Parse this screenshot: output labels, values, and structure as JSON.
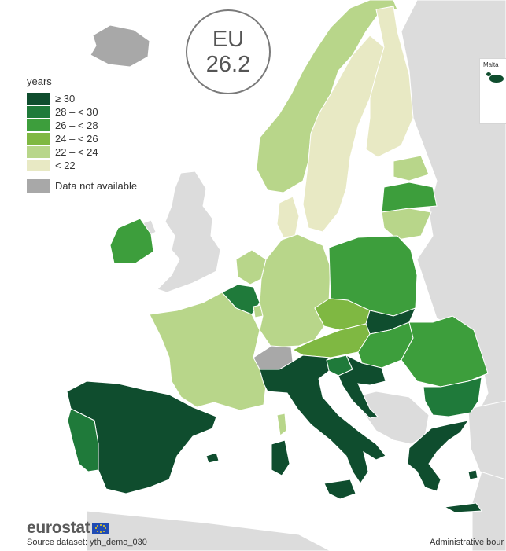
{
  "badge": {
    "line1": "EU",
    "line2": "26.2"
  },
  "legend": {
    "title": "years",
    "classes": [
      {
        "label": "≥ 30",
        "color": "#0f4d2e"
      },
      {
        "label": "28 – < 30",
        "color": "#1f7a3a"
      },
      {
        "label": "26 – < 28",
        "color": "#3d9e3c"
      },
      {
        "label": "24 – < 26",
        "color": "#7fb842"
      },
      {
        "label": "22 – < 24",
        "color": "#b8d68a"
      },
      {
        "label": "< 22",
        "color": "#e8e9c4"
      }
    ],
    "not_available": {
      "label": "Data not available",
      "color": "#a8a8a8"
    }
  },
  "inset": {
    "label": "Malta"
  },
  "footer": {
    "logo": "eurostat",
    "source": "Source dataset: yth_demo_030",
    "admin": "Administrative bour"
  },
  "countries": [
    {
      "name": "Spain",
      "class": "≥ 30"
    },
    {
      "name": "Italy",
      "class": "≥ 30"
    },
    {
      "name": "Croatia",
      "class": "≥ 30"
    },
    {
      "name": "Slovakia",
      "class": "≥ 30"
    },
    {
      "name": "Greece",
      "class": "≥ 30"
    },
    {
      "name": "Malta",
      "class": "≥ 30"
    },
    {
      "name": "Portugal",
      "class": "28 – < 30"
    },
    {
      "name": "Belgium",
      "class": "28 – < 30"
    },
    {
      "name": "Slovenia",
      "class": "28 – < 30"
    },
    {
      "name": "Bulgaria",
      "class": "28 – < 30"
    },
    {
      "name": "Ireland",
      "class": "26 – < 28"
    },
    {
      "name": "Poland",
      "class": "26 – < 28"
    },
    {
      "name": "Hungary",
      "class": "26 – < 28"
    },
    {
      "name": "Romania",
      "class": "26 – < 28"
    },
    {
      "name": "Latvia",
      "class": "26 – < 28"
    },
    {
      "name": "Czechia",
      "class": "24 – < 26"
    },
    {
      "name": "Austria",
      "class": "24 – < 26"
    },
    {
      "name": "France",
      "class": "22 – < 24"
    },
    {
      "name": "Germany",
      "class": "22 – < 24"
    },
    {
      "name": "Netherlands",
      "class": "22 – < 24"
    },
    {
      "name": "Luxembourg",
      "class": "22 – < 24"
    },
    {
      "name": "Lithuania",
      "class": "22 – < 24"
    },
    {
      "name": "Estonia",
      "class": "22 – < 24"
    },
    {
      "name": "Norway",
      "class": "22 – < 24"
    },
    {
      "name": "Sweden",
      "class": "< 22"
    },
    {
      "name": "Finland",
      "class": "< 22"
    },
    {
      "name": "Denmark",
      "class": "< 22"
    },
    {
      "name": "Switzerland",
      "class": "Data not available"
    },
    {
      "name": "Iceland",
      "class": "Data not available"
    }
  ]
}
